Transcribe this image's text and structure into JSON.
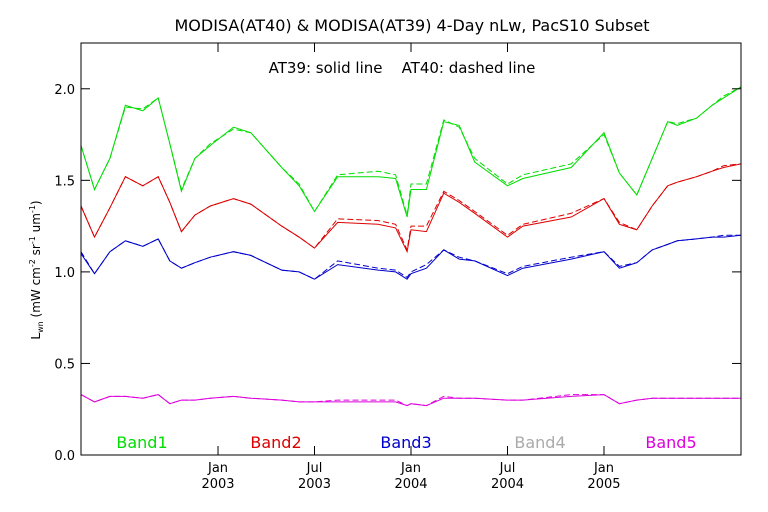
{
  "chart_data": {
    "type": "line",
    "title": "MODISA(AT40) & MODISA(AT39) 4-Day nLw, PacS10 Subset",
    "annotation": "AT39: solid line    AT40: dashed line",
    "ylabel_parts": {
      "base": "L",
      "sub": "wn",
      "rest": " (mW cm",
      "sup1": "-2",
      "mid": " sr",
      "sup2": "-1",
      "end": " um",
      "sup3": "-1",
      "close": ")"
    },
    "ylim": [
      0.0,
      2.25
    ],
    "yticks": [
      {
        "v": 0.0,
        "label": "0.0"
      },
      {
        "v": 0.5,
        "label": "0.5"
      },
      {
        "v": 1.0,
        "label": "1.0"
      },
      {
        "v": 1.5,
        "label": "1.5"
      },
      {
        "v": 2.0,
        "label": "2.0"
      }
    ],
    "xlim": [
      2002.29,
      2005.71
    ],
    "xticks": [
      {
        "v": 2003.0,
        "l1": "Jan",
        "l2": "2003"
      },
      {
        "v": 2003.5,
        "l1": "Jul",
        "l2": "2003"
      },
      {
        "v": 2004.0,
        "l1": "Jan",
        "l2": "2004"
      },
      {
        "v": 2004.5,
        "l1": "Jul",
        "l2": "2004"
      },
      {
        "v": 2005.0,
        "l1": "Jan",
        "l2": "2005"
      }
    ],
    "grid": false,
    "legend_position": "bottom",
    "series": [
      {
        "name": "Band1",
        "color": "#00dd00",
        "solid_x": [
          2002.29,
          2002.36,
          2002.44,
          2002.52,
          2002.61,
          2002.69,
          2002.75,
          2002.81,
          2002.88,
          2002.96,
          2003.08,
          2003.17,
          2003.33,
          2003.42,
          2003.5,
          2003.62,
          2003.83,
          2003.92,
          2003.98,
          2004.0,
          2004.08,
          2004.17,
          2004.25,
          2004.33,
          2004.5,
          2004.58,
          2004.83,
          2005.0,
          2005.08,
          2005.17,
          2005.25,
          2005.33,
          2005.38,
          2005.48,
          2005.56,
          2005.62,
          2005.71
        ],
        "solid_y": [
          1.69,
          1.45,
          1.62,
          1.91,
          1.88,
          1.95,
          1.7,
          1.44,
          1.62,
          1.69,
          1.79,
          1.76,
          1.57,
          1.47,
          1.33,
          1.52,
          1.52,
          1.51,
          1.3,
          1.45,
          1.45,
          1.82,
          1.8,
          1.6,
          1.47,
          1.51,
          1.57,
          1.76,
          1.54,
          1.42,
          1.62,
          1.82,
          1.8,
          1.84,
          1.91,
          1.95,
          2.01
        ],
        "dashed_x": [
          2002.29,
          2002.36,
          2002.44,
          2002.52,
          2002.61,
          2002.69,
          2002.75,
          2002.81,
          2002.88,
          2002.96,
          2003.08,
          2003.17,
          2003.33,
          2003.42,
          2003.5,
          2003.62,
          2003.83,
          2003.92,
          2003.98,
          2004.0,
          2004.08,
          2004.17,
          2004.25,
          2004.33,
          2004.5,
          2004.58,
          2004.83,
          2005.0,
          2005.08,
          2005.17,
          2005.25,
          2005.33,
          2005.38,
          2005.48,
          2005.56,
          2005.62,
          2005.71
        ],
        "dashed_y": [
          1.69,
          1.45,
          1.62,
          1.9,
          1.89,
          1.95,
          1.7,
          1.45,
          1.62,
          1.7,
          1.78,
          1.76,
          1.57,
          1.48,
          1.33,
          1.53,
          1.55,
          1.53,
          1.31,
          1.48,
          1.48,
          1.83,
          1.79,
          1.62,
          1.48,
          1.53,
          1.59,
          1.75,
          1.54,
          1.42,
          1.62,
          1.82,
          1.81,
          1.84,
          1.91,
          1.96,
          2.01
        ]
      },
      {
        "name": "Band2",
        "color": "#dd0000",
        "solid_x": [
          2002.29,
          2002.36,
          2002.44,
          2002.52,
          2002.61,
          2002.69,
          2002.75,
          2002.81,
          2002.88,
          2002.96,
          2003.08,
          2003.17,
          2003.33,
          2003.42,
          2003.5,
          2003.62,
          2003.83,
          2003.92,
          2003.98,
          2004.0,
          2004.08,
          2004.17,
          2004.25,
          2004.33,
          2004.5,
          2004.58,
          2004.83,
          2005.0,
          2005.08,
          2005.17,
          2005.25,
          2005.33,
          2005.38,
          2005.48,
          2005.56,
          2005.62,
          2005.71
        ],
        "solid_y": [
          1.36,
          1.19,
          1.35,
          1.52,
          1.47,
          1.52,
          1.38,
          1.22,
          1.31,
          1.36,
          1.4,
          1.37,
          1.25,
          1.19,
          1.13,
          1.27,
          1.26,
          1.24,
          1.11,
          1.23,
          1.22,
          1.43,
          1.38,
          1.32,
          1.19,
          1.25,
          1.3,
          1.4,
          1.26,
          1.23,
          1.36,
          1.47,
          1.49,
          1.52,
          1.55,
          1.57,
          1.59
        ],
        "dashed_x": [
          2002.29,
          2002.36,
          2002.44,
          2002.52,
          2002.61,
          2002.69,
          2002.75,
          2002.81,
          2002.88,
          2002.96,
          2003.08,
          2003.17,
          2003.33,
          2003.42,
          2003.5,
          2003.62,
          2003.83,
          2003.92,
          2003.98,
          2004.0,
          2004.08,
          2004.17,
          2004.25,
          2004.33,
          2004.5,
          2004.58,
          2004.83,
          2005.0,
          2005.08,
          2005.17,
          2005.25,
          2005.33,
          2005.38,
          2005.48,
          2005.56,
          2005.62,
          2005.71
        ],
        "dashed_y": [
          1.36,
          1.19,
          1.35,
          1.52,
          1.47,
          1.52,
          1.38,
          1.22,
          1.31,
          1.36,
          1.4,
          1.37,
          1.25,
          1.19,
          1.13,
          1.29,
          1.28,
          1.26,
          1.12,
          1.25,
          1.25,
          1.44,
          1.39,
          1.33,
          1.2,
          1.26,
          1.32,
          1.4,
          1.27,
          1.23,
          1.36,
          1.47,
          1.49,
          1.52,
          1.55,
          1.58,
          1.59
        ]
      },
      {
        "name": "Band3",
        "color": "#0000cc",
        "solid_x": [
          2002.29,
          2002.36,
          2002.44,
          2002.52,
          2002.61,
          2002.69,
          2002.75,
          2002.81,
          2002.88,
          2002.96,
          2003.08,
          2003.17,
          2003.33,
          2003.42,
          2003.5,
          2003.62,
          2003.83,
          2003.92,
          2003.98,
          2004.0,
          2004.08,
          2004.17,
          2004.25,
          2004.33,
          2004.5,
          2004.58,
          2004.83,
          2005.0,
          2005.08,
          2005.17,
          2005.25,
          2005.33,
          2005.38,
          2005.48,
          2005.56,
          2005.62,
          2005.71
        ],
        "solid_y": [
          1.1,
          0.99,
          1.11,
          1.17,
          1.14,
          1.18,
          1.06,
          1.02,
          1.05,
          1.08,
          1.11,
          1.09,
          1.01,
          1.0,
          0.96,
          1.04,
          1.01,
          1.0,
          0.96,
          0.99,
          1.02,
          1.12,
          1.07,
          1.06,
          0.98,
          1.02,
          1.07,
          1.11,
          1.02,
          1.05,
          1.12,
          1.15,
          1.17,
          1.18,
          1.19,
          1.19,
          1.2
        ],
        "dashed_x": [
          2002.29,
          2002.36,
          2002.44,
          2002.52,
          2002.61,
          2002.69,
          2002.75,
          2002.81,
          2002.88,
          2002.96,
          2003.08,
          2003.17,
          2003.33,
          2003.42,
          2003.5,
          2003.62,
          2003.83,
          2003.92,
          2003.98,
          2004.0,
          2004.08,
          2004.17,
          2004.25,
          2004.33,
          2004.5,
          2004.58,
          2004.83,
          2005.0,
          2005.08,
          2005.17,
          2005.25,
          2005.33,
          2005.38,
          2005.48,
          2005.56,
          2005.62,
          2005.71
        ],
        "dashed_y": [
          1.11,
          0.99,
          1.11,
          1.17,
          1.14,
          1.18,
          1.06,
          1.02,
          1.05,
          1.08,
          1.11,
          1.09,
          1.01,
          1.0,
          0.96,
          1.06,
          1.02,
          1.01,
          0.97,
          1.0,
          1.04,
          1.12,
          1.08,
          1.06,
          0.99,
          1.03,
          1.08,
          1.11,
          1.03,
          1.05,
          1.12,
          1.15,
          1.17,
          1.18,
          1.19,
          1.2,
          1.2
        ]
      },
      {
        "name": "Band4",
        "color": "#aaaaaa",
        "solid_x": [],
        "solid_y": [],
        "dashed_x": [],
        "dashed_y": []
      },
      {
        "name": "Band5",
        "color": "#dd00dd",
        "solid_x": [
          2002.29,
          2002.36,
          2002.44,
          2002.52,
          2002.61,
          2002.69,
          2002.75,
          2002.81,
          2002.88,
          2002.96,
          2003.08,
          2003.17,
          2003.33,
          2003.42,
          2003.5,
          2003.62,
          2003.83,
          2003.92,
          2003.98,
          2004.0,
          2004.08,
          2004.17,
          2004.25,
          2004.33,
          2004.5,
          2004.58,
          2004.83,
          2005.0,
          2005.08,
          2005.17,
          2005.25,
          2005.33,
          2005.38,
          2005.48,
          2005.56,
          2005.62,
          2005.71
        ],
        "solid_y": [
          0.33,
          0.29,
          0.32,
          0.32,
          0.31,
          0.33,
          0.28,
          0.3,
          0.3,
          0.31,
          0.32,
          0.31,
          0.3,
          0.29,
          0.29,
          0.29,
          0.29,
          0.29,
          0.27,
          0.28,
          0.27,
          0.31,
          0.31,
          0.31,
          0.3,
          0.3,
          0.32,
          0.33,
          0.28,
          0.3,
          0.31,
          0.31,
          0.31,
          0.31,
          0.31,
          0.31,
          0.31
        ],
        "dashed_x": [
          2002.29,
          2002.36,
          2002.44,
          2002.52,
          2002.61,
          2002.69,
          2002.75,
          2002.81,
          2002.88,
          2002.96,
          2003.08,
          2003.17,
          2003.33,
          2003.42,
          2003.5,
          2003.62,
          2003.83,
          2003.92,
          2003.98,
          2004.0,
          2004.08,
          2004.17,
          2004.25,
          2004.33,
          2004.5,
          2004.58,
          2004.83,
          2005.0,
          2005.08,
          2005.17,
          2005.25,
          2005.33,
          2005.38,
          2005.48,
          2005.56,
          2005.62,
          2005.71
        ],
        "dashed_y": [
          0.33,
          0.29,
          0.32,
          0.32,
          0.31,
          0.33,
          0.28,
          0.3,
          0.3,
          0.31,
          0.32,
          0.31,
          0.3,
          0.29,
          0.29,
          0.3,
          0.3,
          0.3,
          0.27,
          0.28,
          0.27,
          0.32,
          0.31,
          0.31,
          0.3,
          0.3,
          0.33,
          0.33,
          0.28,
          0.3,
          0.31,
          0.31,
          0.31,
          0.31,
          0.31,
          0.31,
          0.31
        ]
      }
    ]
  }
}
